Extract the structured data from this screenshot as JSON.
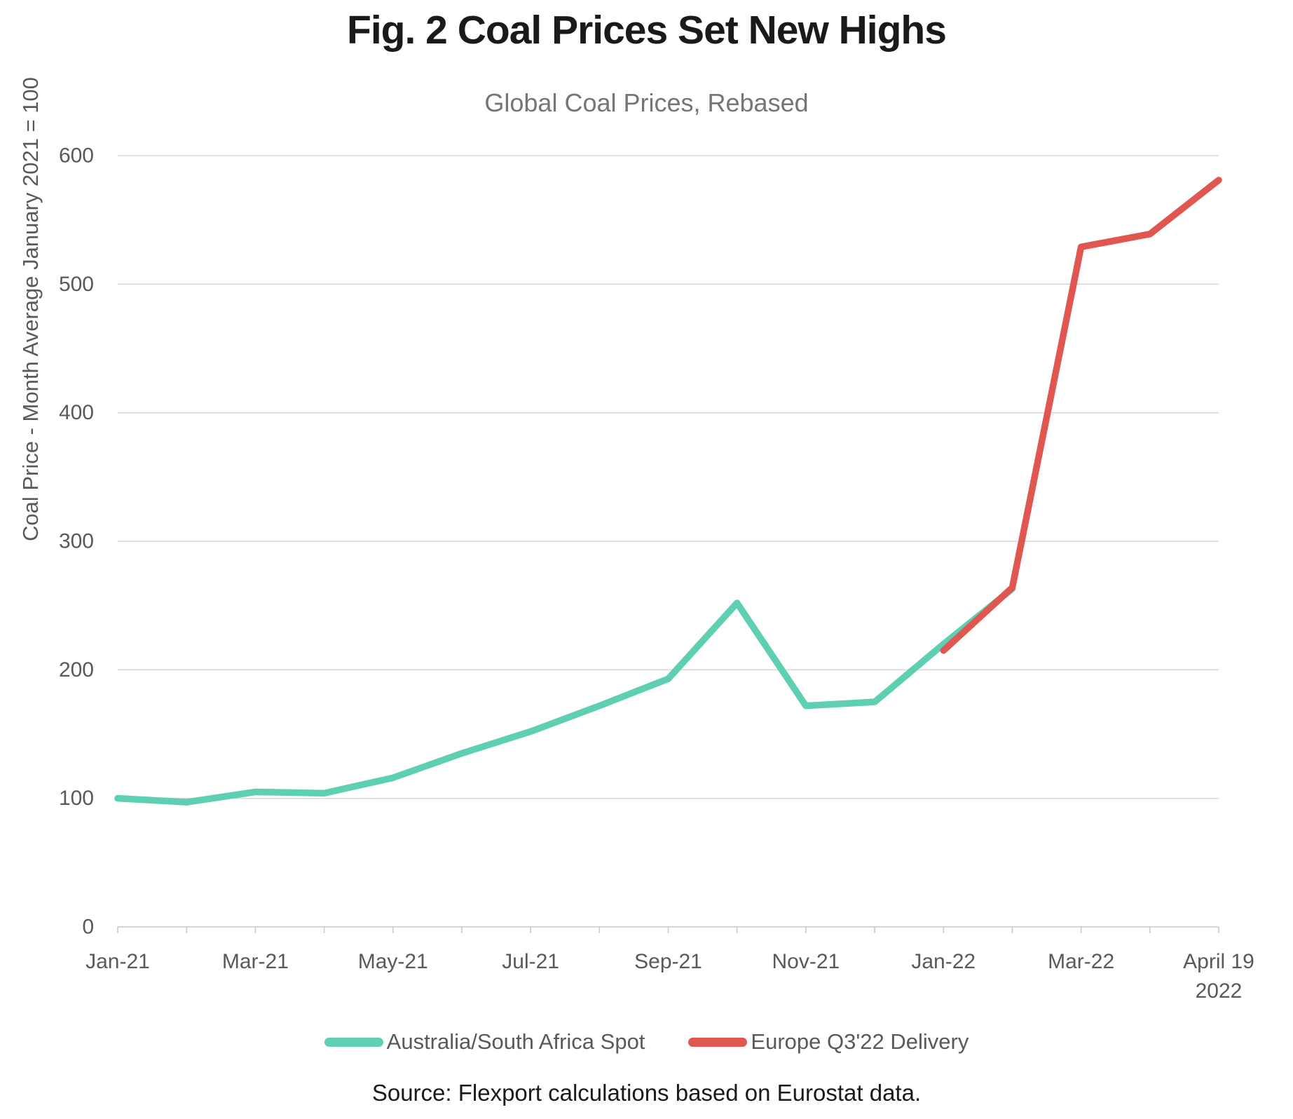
{
  "header": {
    "title": "Fig. 2 Coal Prices Set New Highs",
    "subtitle": "Global Coal Prices, Rebased"
  },
  "source_note": "Source: Flexport calculations based on Eurostat data.",
  "colors": {
    "australia_spot": "#5ECFB3",
    "europe_delivery": "#E05752",
    "gridline": "#d8d8d8",
    "axis": "#c9c9c9",
    "tick_text": "#595959"
  },
  "chart_data": {
    "type": "line",
    "title": "Fig. 2 Coal Prices Set New Highs",
    "subtitle": "Global Coal Prices, Rebased",
    "xlabel": "",
    "ylabel": "Coal Price - Month Average January 2021 = 100",
    "ylim": [
      0,
      600
    ],
    "yticks": [
      0,
      100,
      200,
      300,
      400,
      500,
      600
    ],
    "grid": "horizontal",
    "legend_position": "bottom",
    "categories": [
      "Jan-21",
      "Feb-21",
      "Mar-21",
      "Apr-21",
      "May-21",
      "Jun-21",
      "Jul-21",
      "Aug-21",
      "Sep-21",
      "Oct-21",
      "Nov-21",
      "Dec-21",
      "Jan-22",
      "Feb-22",
      "Mar-22",
      "",
      "April 19 2022"
    ],
    "xticks": [
      {
        "index": 0,
        "lines": [
          "Jan-21"
        ]
      },
      {
        "index": 2,
        "lines": [
          "Mar-21"
        ]
      },
      {
        "index": 4,
        "lines": [
          "May-21"
        ]
      },
      {
        "index": 6,
        "lines": [
          "Jul-21"
        ]
      },
      {
        "index": 8,
        "lines": [
          "Sep-21"
        ]
      },
      {
        "index": 10,
        "lines": [
          "Nov-21"
        ]
      },
      {
        "index": 12,
        "lines": [
          "Jan-22"
        ]
      },
      {
        "index": 14,
        "lines": [
          "Mar-22"
        ]
      },
      {
        "index": 16,
        "lines": [
          "April 19",
          "2022"
        ]
      }
    ],
    "series": [
      {
        "name": "Australia/South Africa Spot",
        "color": "#5ECFB3",
        "values": [
          100,
          97,
          105,
          104,
          116,
          135,
          152,
          172,
          193,
          252,
          172,
          175,
          220,
          263,
          null,
          null,
          null
        ]
      },
      {
        "name": "Europe Q3'22 Delivery",
        "color": "#E05752",
        "values": [
          null,
          null,
          null,
          null,
          null,
          null,
          null,
          null,
          null,
          null,
          null,
          null,
          215,
          264,
          529,
          539,
          581
        ]
      }
    ]
  }
}
